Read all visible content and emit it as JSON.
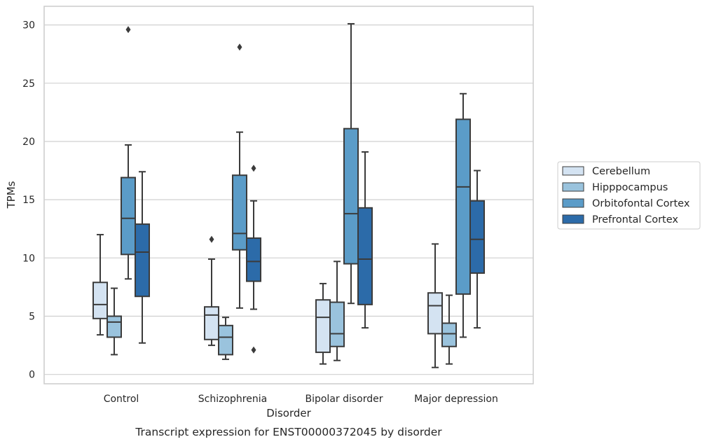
{
  "chart_data": {
    "type": "box",
    "title": "",
    "caption": "Transcript expression for ENST00000372045 by disorder",
    "xlabel": "Disorder",
    "ylabel": "TPMs",
    "ylim": [
      -0.8,
      31.6
    ],
    "yticks": [
      0,
      5,
      10,
      15,
      20,
      25,
      30
    ],
    "grid": "horizontal",
    "legend_position": "right",
    "categories": [
      "Control",
      "Schizophrenia",
      "Bipolar disorder",
      "Major depression"
    ],
    "series": [
      {
        "name": "Cerebellum",
        "color": "#d4e3f2",
        "boxes": [
          {
            "whisker_low": 3.4,
            "q1": 4.8,
            "median": 6.0,
            "q3": 7.9,
            "whisker_high": 12.0,
            "outliers": []
          },
          {
            "whisker_low": 2.5,
            "q1": 3.0,
            "median": 5.1,
            "q3": 5.8,
            "whisker_high": 9.9,
            "outliers": [
              11.6
            ]
          },
          {
            "whisker_low": 0.9,
            "q1": 1.9,
            "median": 4.9,
            "q3": 6.4,
            "whisker_high": 7.8,
            "outliers": []
          },
          {
            "whisker_low": 0.6,
            "q1": 3.5,
            "median": 5.9,
            "q3": 7.0,
            "whisker_high": 11.2,
            "outliers": []
          }
        ]
      },
      {
        "name": "Hipppocampus",
        "color": "#9ac3dd",
        "boxes": [
          {
            "whisker_low": 1.7,
            "q1": 3.2,
            "median": 4.5,
            "q3": 5.0,
            "whisker_high": 7.4,
            "outliers": []
          },
          {
            "whisker_low": 1.3,
            "q1": 1.7,
            "median": 3.2,
            "q3": 4.2,
            "whisker_high": 4.9,
            "outliers": []
          },
          {
            "whisker_low": 1.2,
            "q1": 2.4,
            "median": 3.5,
            "q3": 6.2,
            "whisker_high": 9.7,
            "outliers": []
          },
          {
            "whisker_low": 0.9,
            "q1": 2.4,
            "median": 3.5,
            "q3": 4.4,
            "whisker_high": 6.8,
            "outliers": []
          }
        ]
      },
      {
        "name": "Orbitofontal Cortex",
        "color": "#5b9cc8",
        "boxes": [
          {
            "whisker_low": 8.2,
            "q1": 10.3,
            "median": 13.4,
            "q3": 16.9,
            "whisker_high": 19.7,
            "outliers": [
              29.6
            ]
          },
          {
            "whisker_low": 5.7,
            "q1": 10.7,
            "median": 12.1,
            "q3": 17.1,
            "whisker_high": 20.8,
            "outliers": [
              28.1
            ]
          },
          {
            "whisker_low": 6.1,
            "q1": 9.5,
            "median": 13.8,
            "q3": 21.1,
            "whisker_high": 30.1,
            "outliers": []
          },
          {
            "whisker_low": 3.2,
            "q1": 6.9,
            "median": 16.1,
            "q3": 21.9,
            "whisker_high": 24.1,
            "outliers": []
          }
        ]
      },
      {
        "name": "Prefrontal Cortex",
        "color": "#2c6ba9",
        "boxes": [
          {
            "whisker_low": 2.7,
            "q1": 6.7,
            "median": 10.5,
            "q3": 12.9,
            "whisker_high": 17.4,
            "outliers": []
          },
          {
            "whisker_low": 5.6,
            "q1": 8.0,
            "median": 9.7,
            "q3": 11.7,
            "whisker_high": 14.9,
            "outliers": [
              17.7,
              2.1
            ]
          },
          {
            "whisker_low": 4.0,
            "q1": 6.0,
            "median": 9.9,
            "q3": 14.3,
            "whisker_high": 19.1,
            "outliers": []
          },
          {
            "whisker_low": 4.0,
            "q1": 8.7,
            "median": 11.6,
            "q3": 14.9,
            "whisker_high": 17.5,
            "outliers": []
          }
        ]
      }
    ]
  }
}
